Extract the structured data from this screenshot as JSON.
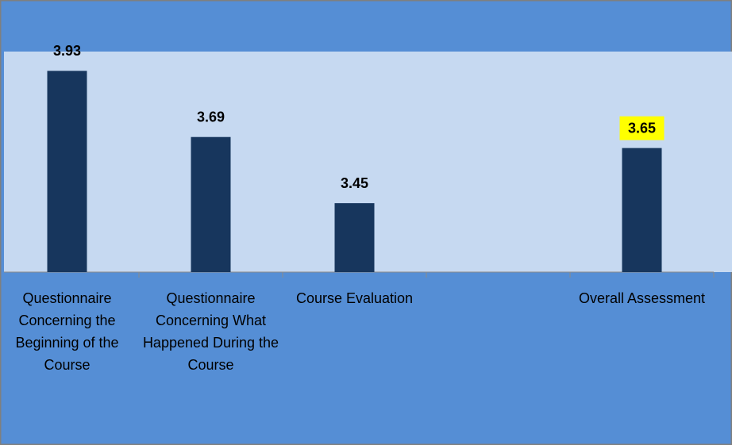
{
  "chart_data": {
    "type": "bar",
    "categories": [
      "Questionnaire Concerning the Beginning of the Course",
      "Questionnaire Concerning What Happened During the Course",
      "Course Evaluation",
      null,
      "Overall Assessment"
    ],
    "values": [
      3.93,
      3.69,
      3.45,
      null,
      3.65
    ],
    "color": "#17365d",
    "value_label_backgrounds": [
      null,
      null,
      null,
      null,
      "#ffff00"
    ],
    "ylim": [
      3.2,
      4.0
    ]
  }
}
